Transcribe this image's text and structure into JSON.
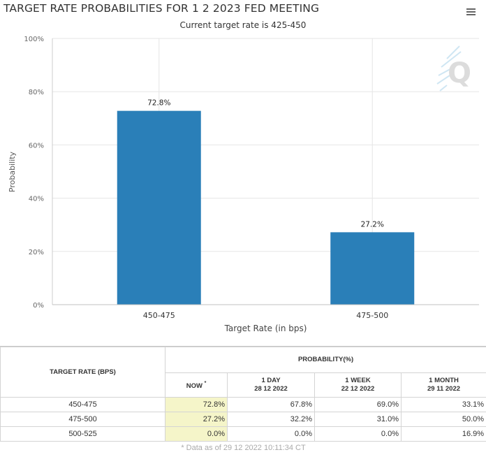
{
  "chart_data": {
    "type": "bar",
    "title": "TARGET RATE PROBABILITIES FOR 1 2 2023 FED MEETING",
    "subtitle": "Current target rate is 425-450",
    "xlabel": "Target Rate (in bps)",
    "ylabel": "Probability",
    "categories": [
      "450-475",
      "475-500"
    ],
    "values": [
      72.8,
      27.2
    ],
    "data_labels": [
      "72.8%",
      "27.2%"
    ],
    "ylim": [
      0,
      100
    ],
    "yticks": [
      "0%",
      "20%",
      "40%",
      "60%",
      "80%",
      "100%"
    ],
    "grid": true,
    "legend": "none",
    "bar_color": "#2a7fb8",
    "watermark": "Q"
  },
  "table": {
    "rate_header": "TARGET RATE (BPS)",
    "probability_header": "PROBABILITY(%)",
    "columns": [
      {
        "label": "NOW",
        "mark": "*",
        "date": ""
      },
      {
        "label": "1 DAY",
        "date": "28 12 2022"
      },
      {
        "label": "1 WEEK",
        "date": "22 12 2022"
      },
      {
        "label": "1 MONTH",
        "date": "29 11 2022"
      }
    ],
    "rows": [
      {
        "rate": "450-475",
        "values": [
          "72.8%",
          "67.8%",
          "69.0%",
          "33.1%"
        ]
      },
      {
        "rate": "475-500",
        "values": [
          "27.2%",
          "32.2%",
          "31.0%",
          "50.0%"
        ]
      },
      {
        "rate": "500-525",
        "values": [
          "0.0%",
          "0.0%",
          "0.0%",
          "16.9%"
        ]
      }
    ],
    "footnote": "* Data as of 29 12 2022 10:11:34 CT",
    "now_highlight_color": "#f5f5c9"
  }
}
